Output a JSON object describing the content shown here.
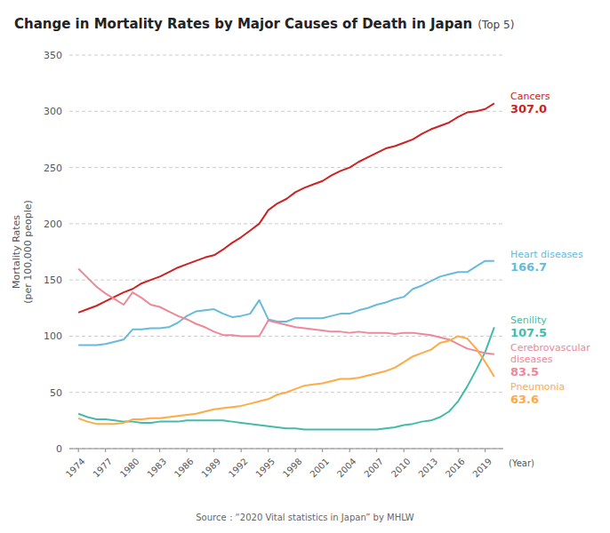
{
  "chart_data": {
    "type": "line",
    "title": "Change in Mortality Rates by Major Causes of Death in Japan",
    "subtitle": "(Top 5)",
    "y_label": "Mortality Rates\n(per 100,000 people)",
    "x_label": "(Year)",
    "source": "Source：“2020 Vital statistics in Japan” by MHLW",
    "grid": true,
    "ylim": [
      0,
      350
    ],
    "yticks": [
      0,
      50,
      100,
      150,
      200,
      250,
      300,
      350
    ],
    "xlim": [
      1973,
      2021
    ],
    "xticks": [
      1974,
      1977,
      1980,
      1983,
      1986,
      1989,
      1992,
      1995,
      1998,
      2001,
      2004,
      2007,
      2010,
      2013,
      2016,
      2019
    ],
    "x": [
      1974,
      1975,
      1976,
      1977,
      1978,
      1979,
      1980,
      1981,
      1982,
      1983,
      1984,
      1985,
      1986,
      1987,
      1988,
      1989,
      1990,
      1991,
      1992,
      1993,
      1994,
      1995,
      1996,
      1997,
      1998,
      1999,
      2000,
      2001,
      2002,
      2003,
      2004,
      2005,
      2006,
      2007,
      2008,
      2009,
      2010,
      2011,
      2012,
      2013,
      2014,
      2015,
      2016,
      2017,
      2018,
      2019,
      2020
    ],
    "series": [
      {
        "name": "Cancers",
        "color": "#cc2222",
        "end_label": "307.0",
        "values": [
          121,
          124,
          127,
          131,
          135,
          139,
          142,
          147,
          150,
          153,
          157,
          161,
          164,
          167,
          170,
          172,
          177,
          183,
          188,
          194,
          200,
          212,
          218,
          222,
          228,
          232,
          235,
          238,
          243,
          247,
          250,
          255,
          259,
          263,
          267,
          269,
          272,
          275,
          280,
          284,
          287,
          290,
          295,
          299,
          300,
          302,
          307
        ]
      },
      {
        "name": "Heart diseases",
        "color": "#66bbdd",
        "end_label": "166.7",
        "values": [
          92,
          92,
          92,
          93,
          95,
          97,
          106,
          106,
          107,
          107,
          108,
          112,
          118,
          122,
          123,
          124,
          120,
          117,
          118,
          120,
          132,
          115,
          113,
          113,
          116,
          116,
          116,
          116,
          118,
          120,
          120,
          123,
          125,
          128,
          130,
          133,
          135,
          142,
          145,
          149,
          153,
          155,
          157,
          157,
          162,
          167,
          167
        ]
      },
      {
        "name": "Senility",
        "color": "#44bbaa",
        "end_label": "107.5",
        "values": [
          31,
          28,
          26,
          26,
          25,
          24,
          24,
          23,
          23,
          24,
          24,
          24,
          25,
          25,
          25,
          25,
          25,
          24,
          23,
          22,
          21,
          20,
          19,
          18,
          18,
          17,
          17,
          17,
          17,
          17,
          17,
          17,
          17,
          17,
          18,
          19,
          21,
          22,
          24,
          25,
          28,
          33,
          42,
          55,
          70,
          86,
          108
        ]
      },
      {
        "name": "Cerebrovascular\ndiseases",
        "color": "#ee8899",
        "end_label": "83.5",
        "values": [
          160,
          152,
          144,
          138,
          133,
          128,
          139,
          134,
          128,
          126,
          122,
          118,
          115,
          111,
          108,
          104,
          101,
          101,
          100,
          100,
          100,
          114,
          112,
          110,
          108,
          107,
          106,
          105,
          104,
          104,
          103,
          104,
          103,
          103,
          103,
          102,
          103,
          103,
          102,
          101,
          99,
          97,
          93,
          89,
          87,
          85,
          84
        ]
      },
      {
        "name": "Pneumonia",
        "color": "#ffaa44",
        "end_label": "63.6",
        "values": [
          27,
          24,
          22,
          22,
          22,
          23,
          26,
          26,
          27,
          27,
          28,
          29,
          30,
          31,
          33,
          35,
          36,
          37,
          38,
          40,
          42,
          44,
          48,
          50,
          53,
          56,
          57,
          58,
          60,
          62,
          62,
          63,
          65,
          67,
          69,
          72,
          77,
          82,
          85,
          88,
          94,
          96,
          100,
          98,
          89,
          77,
          64
        ]
      }
    ]
  }
}
